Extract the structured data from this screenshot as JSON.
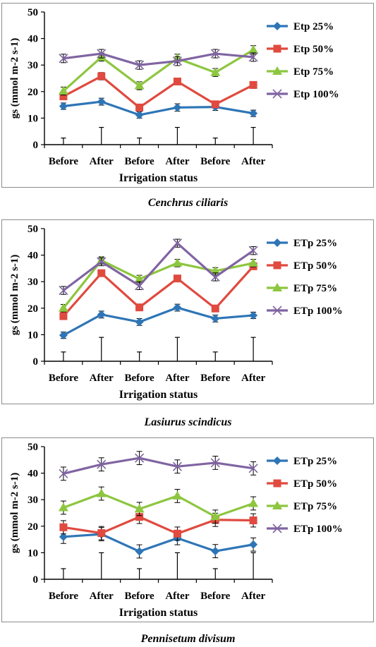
{
  "figure": {
    "panels": [
      {
        "caption": "Cenchrus ciliaris",
        "ylabel": "gs (mmol m-2 s-1)",
        "xlabel": "Irrigation status"
      },
      {
        "caption": "Lasiurus scindicus",
        "ylabel": "gs (mmol m-2 s-1)",
        "xlabel": "Irrigation status"
      },
      {
        "caption": "Pennisetum divisum",
        "ylabel": "gs (mmol m-2 s-1)",
        "xlabel": "Irrigation status"
      }
    ]
  },
  "chart_data": [
    {
      "type": "line",
      "categories": [
        "Before",
        "After",
        "Before",
        "After",
        "Before",
        "After"
      ],
      "xlabel": "Irrigation status",
      "ylabel": "gs (mmol m-2 s-1)",
      "ylim": [
        0,
        50
      ],
      "yticks": [
        0,
        10,
        20,
        30,
        40,
        50
      ],
      "grid": false,
      "legend_position": "right",
      "bottom_bars": [
        2.5,
        6.5,
        2.5,
        6.5,
        2.5,
        6.5
      ],
      "series": [
        {
          "name": "Etp 25%",
          "color": "#2E75B6",
          "marker": "diamond",
          "values": [
            14.5,
            16.2,
            11.2,
            14.0,
            14.2,
            11.8
          ],
          "errors": [
            1.2,
            1.3,
            1.2,
            1.4,
            1.3,
            1.2
          ]
        },
        {
          "name": "Etp 50%",
          "color": "#E04A3F",
          "marker": "square",
          "values": [
            18.2,
            25.8,
            14.0,
            23.8,
            15.2,
            22.5
          ],
          "errors": [
            1.3,
            1.4,
            1.2,
            1.3,
            1.2,
            1.3
          ]
        },
        {
          "name": "Etp 75%",
          "color": "#8DC63F",
          "marker": "triangle",
          "values": [
            20.2,
            33.0,
            22.2,
            32.5,
            27.2,
            35.7
          ],
          "errors": [
            1.5,
            1.5,
            1.5,
            1.6,
            1.5,
            1.6
          ]
        },
        {
          "name": "Etp 100%",
          "color": "#8064A2",
          "marker": "x",
          "values": [
            32.5,
            34.3,
            30.0,
            31.5,
            34.3,
            33.0
          ],
          "errors": [
            1.6,
            1.6,
            1.6,
            1.7,
            1.6,
            1.6
          ]
        }
      ]
    },
    {
      "type": "line",
      "categories": [
        "Before",
        "After",
        "Before",
        "After",
        "Before",
        "After"
      ],
      "xlabel": "Irrigation status",
      "ylabel": "gs (mmol m-2 s-1)",
      "ylim": [
        0,
        50
      ],
      "yticks": [
        0,
        10,
        20,
        30,
        40,
        50
      ],
      "grid": false,
      "legend_position": "right",
      "bottom_bars": [
        3.5,
        9.0,
        3.5,
        9.0,
        3.5,
        9.0
      ],
      "series": [
        {
          "name": "ETp 25%",
          "color": "#2E75B6",
          "marker": "diamond",
          "values": [
            9.8,
            17.6,
            14.8,
            20.2,
            16.1,
            17.3
          ],
          "errors": [
            1.2,
            1.3,
            1.3,
            1.3,
            1.3,
            1.2
          ]
        },
        {
          "name": "ETp 50%",
          "color": "#E04A3F",
          "marker": "square",
          "values": [
            17.0,
            33.2,
            20.3,
            31.2,
            19.9,
            35.8
          ],
          "errors": [
            1.2,
            1.2,
            1.1,
            1.2,
            1.1,
            1.2
          ]
        },
        {
          "name": "ETp 75%",
          "color": "#8DC63F",
          "marker": "triangle",
          "values": [
            20.0,
            38.0,
            31.0,
            37.0,
            34.0,
            37.0
          ],
          "errors": [
            1.4,
            1.4,
            1.4,
            1.4,
            1.3,
            1.4
          ]
        },
        {
          "name": "ETp 100%",
          "color": "#8064A2",
          "marker": "x",
          "values": [
            26.7,
            37.5,
            28.5,
            44.5,
            31.8,
            41.7
          ],
          "errors": [
            1.5,
            1.5,
            1.5,
            1.5,
            1.5,
            1.5
          ]
        }
      ]
    },
    {
      "type": "line",
      "categories": [
        "Before",
        "After",
        "Before",
        "After",
        "Before",
        "After"
      ],
      "xlabel": "Irrigation status",
      "ylabel": "gs (mmol m-2 s-1)",
      "ylim": [
        0,
        50
      ],
      "yticks": [
        0,
        10,
        20,
        30,
        40,
        50
      ],
      "grid": false,
      "legend_position": "right",
      "bottom_bars": [
        4.0,
        10.0,
        4.0,
        10.0,
        4.0,
        10.0
      ],
      "series": [
        {
          "name": "ETp 25%",
          "color": "#2E75B6",
          "marker": "diamond",
          "values": [
            16.0,
            17.0,
            10.5,
            15.5,
            10.6,
            13.1
          ],
          "errors": [
            2.5,
            2.5,
            2.5,
            2.5,
            2.5,
            2.5
          ]
        },
        {
          "name": "ETp 50%",
          "color": "#E04A3F",
          "marker": "square",
          "values": [
            19.6,
            17.4,
            23.5,
            17.2,
            22.4,
            22.2
          ],
          "errors": [
            2.5,
            2.5,
            2.5,
            2.5,
            2.5,
            2.5
          ]
        },
        {
          "name": "ETp 75%",
          "color": "#8DC63F",
          "marker": "triangle",
          "values": [
            27.0,
            32.3,
            26.5,
            31.4,
            23.6,
            28.6
          ],
          "errors": [
            2.5,
            2.5,
            2.5,
            2.5,
            2.5,
            2.5
          ]
        },
        {
          "name": "ETp 100%",
          "color": "#8064A2",
          "marker": "x",
          "values": [
            39.8,
            43.3,
            45.7,
            42.5,
            43.9,
            41.8
          ],
          "errors": [
            2.5,
            2.5,
            2.5,
            2.5,
            2.5,
            2.5
          ]
        }
      ]
    }
  ]
}
